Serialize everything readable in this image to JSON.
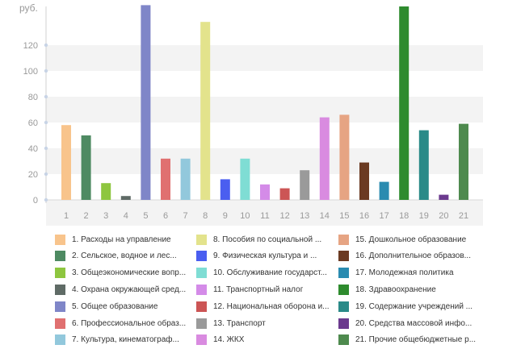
{
  "chart_data": {
    "type": "bar",
    "ylabel": "руб.",
    "ylim": [
      0,
      150
    ],
    "yticks": [
      0,
      20,
      40,
      60,
      80,
      100,
      120
    ],
    "grid": "horizontal bands",
    "legend_placement": "bottom",
    "categories": [
      "1",
      "2",
      "3",
      "4",
      "5",
      "6",
      "7",
      "8",
      "9",
      "10",
      "11",
      "12",
      "13",
      "14",
      "15",
      "16",
      "17",
      "18",
      "19",
      "20",
      "21"
    ],
    "values": [
      58,
      50,
      13,
      3,
      151,
      32,
      32,
      138,
      16,
      32,
      12,
      9,
      23,
      64,
      66,
      29,
      14,
      150,
      54,
      4,
      59
    ],
    "colors": [
      "#f8c48c",
      "#4e8a62",
      "#8ec63f",
      "#5f6b66",
      "#7f86c8",
      "#e07070",
      "#92c8dc",
      "#e3e38c",
      "#4a5ef0",
      "#7fddd4",
      "#d48be8",
      "#cc5555",
      "#9a9a9a",
      "#d98be0",
      "#e6a483",
      "#6b3a22",
      "#2a8bb0",
      "#2e8b2e",
      "#2a8a88",
      "#6b3a8e",
      "#4e8a4e"
    ],
    "legend": [
      "1. Расходы на управление",
      "2. Сельское, водное и лес...",
      "3. Общеэкономические вопр...",
      "4. Охрана окружающей сред...",
      "5. Общее образование",
      "6. Профессиональное образ...",
      "7. Культура, кинематограф...",
      "8. Пособия по социальной ...",
      "9. Физическая культура и ...",
      "10. Обслуживание государст...",
      "11. Транспортный налог",
      "12. Национальная оборона и...",
      "13. Транспорт",
      "14. ЖКХ",
      "15. Дошкольное образование",
      "16. Дополнительное образов...",
      "17. Молодежная политика",
      "18. Здравоохранение",
      "19. Содержание учреждений ...",
      "20. Средства массовой инфо...",
      "21. Прочие общебюджетные р..."
    ]
  }
}
